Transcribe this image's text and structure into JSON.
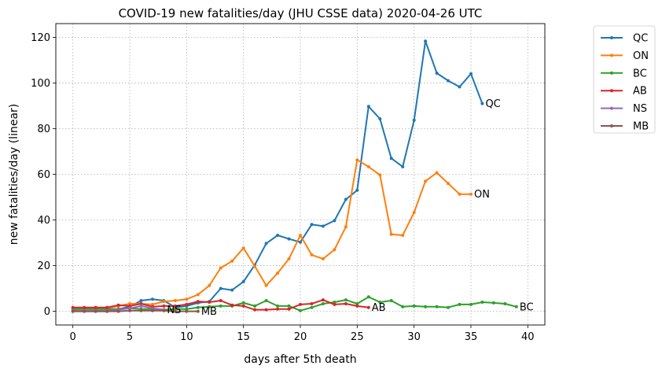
{
  "chart_data": {
    "type": "line",
    "title": "COVID-19 new fatalities/day (JHU CSSE data) 2020-04-26 UTC",
    "xlabel": "days after 5th death",
    "ylabel": "new fatalities/day (linear)",
    "xlim": [
      -1.5,
      41.5
    ],
    "ylim": [
      -6,
      126
    ],
    "xticks": [
      0,
      5,
      10,
      15,
      20,
      25,
      30,
      35,
      40
    ],
    "yticks": [
      0,
      20,
      40,
      60,
      80,
      100,
      120
    ],
    "grid": true,
    "legend_position": "outside-top-right",
    "series": [
      {
        "name": "QC",
        "color": "#1f77b4",
        "x": [
          0,
          1,
          2,
          3,
          4,
          5,
          6,
          7,
          8,
          9,
          10,
          11,
          12,
          13,
          14,
          15,
          16,
          17,
          18,
          19,
          20,
          21,
          22,
          23,
          24,
          25,
          26,
          27,
          28,
          29,
          30,
          31,
          32,
          33,
          34,
          35,
          36
        ],
        "values": [
          0,
          0,
          0,
          0,
          1,
          2,
          4.7,
          5.3,
          4.7,
          1.7,
          2.3,
          3.7,
          4.3,
          10,
          9.3,
          13,
          20.3,
          29.7,
          33.3,
          31.7,
          30.3,
          38,
          37.3,
          39.7,
          49,
          53,
          89.7,
          84.3,
          67,
          63.3,
          83.7,
          118.3,
          104.3,
          101,
          98.3,
          104,
          91
        ],
        "end_label": "QC"
      },
      {
        "name": "ON",
        "color": "#ff7f0e",
        "x": [
          0,
          1,
          2,
          3,
          4,
          5,
          6,
          7,
          8,
          9,
          10,
          11,
          12,
          13,
          14,
          15,
          16,
          17,
          18,
          19,
          20,
          21,
          22,
          23,
          24,
          25,
          26,
          27,
          28,
          29,
          30,
          31,
          32,
          33,
          34,
          35
        ],
        "values": [
          1.3,
          1.3,
          1.3,
          1.3,
          2.3,
          3.3,
          3.3,
          3,
          4.3,
          4.7,
          5.3,
          7.3,
          11.3,
          19,
          22,
          27.7,
          19.7,
          11.3,
          16.7,
          23,
          33.3,
          24.7,
          23,
          27,
          37,
          66.3,
          63.3,
          59.7,
          33.7,
          33.3,
          43.3,
          57,
          60.7,
          56,
          51.3,
          51.3
        ],
        "end_label": "ON"
      },
      {
        "name": "BC",
        "color": "#2ca02c",
        "x": [
          0,
          1,
          2,
          3,
          4,
          5,
          6,
          7,
          8,
          9,
          10,
          11,
          12,
          13,
          14,
          15,
          16,
          17,
          18,
          19,
          20,
          21,
          22,
          23,
          24,
          25,
          26,
          27,
          28,
          29,
          30,
          31,
          32,
          33,
          34,
          35,
          36,
          37,
          38,
          39
        ],
        "values": [
          1,
          1,
          1,
          1,
          1,
          1.3,
          1,
          1,
          0.7,
          1,
          1,
          1.7,
          2,
          2.3,
          2.3,
          3.7,
          2.3,
          4.7,
          2.3,
          2.3,
          0.3,
          1.7,
          3.3,
          4,
          5,
          3.3,
          6.3,
          4,
          4.7,
          2,
          2.3,
          2,
          2,
          1.7,
          3,
          3,
          4,
          3.7,
          3.3,
          2
        ],
        "end_label": "BC"
      },
      {
        "name": "AB",
        "color": "#d62728",
        "x": [
          0,
          1,
          2,
          3,
          4,
          5,
          6,
          7,
          8,
          9,
          10,
          11,
          12,
          13,
          14,
          15,
          16,
          17,
          18,
          19,
          20,
          21,
          22,
          23,
          24,
          25,
          26
        ],
        "values": [
          1.7,
          1.7,
          1.7,
          1.7,
          2.7,
          2.3,
          3.3,
          2,
          2.3,
          2.3,
          3,
          4.3,
          4,
          4.7,
          2.7,
          2.3,
          0.7,
          0.7,
          1,
          1,
          3,
          3.3,
          5,
          3,
          3.3,
          2.3,
          1.7
        ],
        "end_label": "AB"
      },
      {
        "name": "NS",
        "color": "#9467bd",
        "x": [
          0,
          1,
          2,
          3,
          4,
          5,
          6,
          7,
          8
        ],
        "values": [
          0.3,
          0.3,
          0.3,
          0.3,
          0.7,
          1.3,
          2.3,
          1.3,
          0.7
        ],
        "end_label": "NS"
      },
      {
        "name": "MB",
        "color": "#8c564b",
        "x": [
          0,
          1,
          2,
          3,
          4,
          5,
          6,
          7,
          8,
          9,
          10,
          11
        ],
        "values": [
          0,
          0,
          0,
          0,
          0,
          0.3,
          0.3,
          0.3,
          0.3,
          0,
          0,
          0
        ],
        "end_label": "MB"
      }
    ]
  }
}
